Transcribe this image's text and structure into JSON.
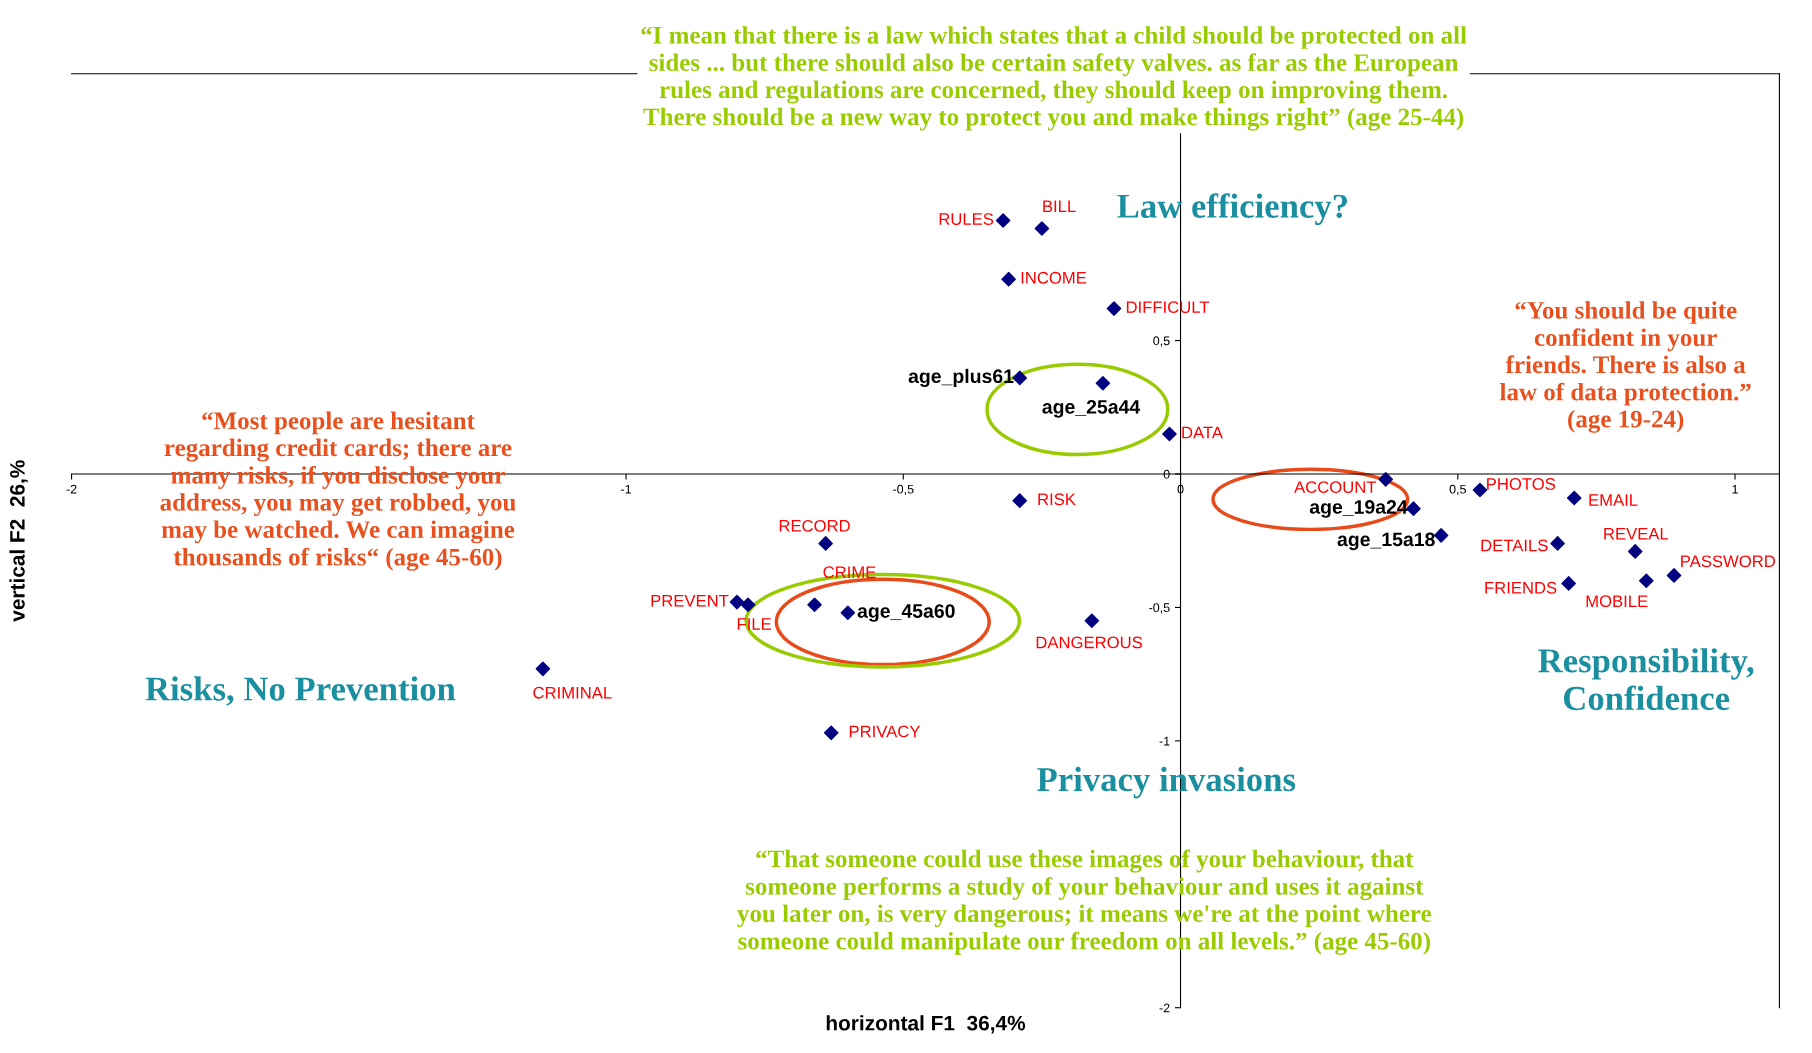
{
  "chart_data": {
    "type": "scatter",
    "xlabel": "horizontal F1  36,4%",
    "ylabel": "vertical F2  26,%",
    "xlim": [
      -2,
      1.08
    ],
    "ylim": [
      -2,
      1.5
    ],
    "xticks": [
      -2,
      -1,
      {
        "value": -0.5,
        "label": "-0,5"
      },
      0,
      {
        "value": 0.5,
        "label": "0,5"
      },
      1
    ],
    "yticks": [
      {
        "value": 0.5,
        "label": "0,5"
      },
      0,
      {
        "value": -0.5,
        "label": "-0,5"
      },
      -1,
      -2
    ],
    "marker": "diamond",
    "grid": false,
    "series": [
      {
        "color": "#000080",
        "x": [
          -0.32,
          -0.25,
          -0.31,
          -0.12,
          -0.02,
          0.37,
          0.54,
          0.71,
          0.68,
          0.82,
          0.89,
          0.7,
          0.84,
          -0.29,
          -0.64,
          -0.66,
          -0.8,
          -0.78,
          -0.16,
          -1.15,
          -0.63
        ],
        "values": [
          0.95,
          0.92,
          0.73,
          0.62,
          0.15,
          -0.02,
          -0.06,
          -0.09,
          -0.26,
          -0.29,
          -0.38,
          -0.41,
          -0.4,
          -0.1,
          -0.26,
          -0.49,
          -0.48,
          -0.49,
          -0.55,
          -0.73,
          -0.97
        ],
        "value_labels": [
          "RULES",
          "BILL",
          "INCOME",
          "DIFFICULT",
          "DATA",
          "ACCOUNT",
          "PHOTOS",
          "EMAIL",
          "DETAILS",
          "REVEAL",
          "PASSWORD",
          "FRIENDS",
          "MOBILE",
          "RISK",
          "RECORD",
          "CRIME",
          "PREVENT",
          "FILE",
          "DANGEROUS",
          "CRIMINAL",
          "PRIVACY"
        ]
      },
      {
        "color": "#000080",
        "x": [
          -0.29,
          -0.14,
          0.42,
          0.47,
          -0.6
        ],
        "values": [
          0.36,
          0.34,
          -0.13,
          -0.23,
          -0.52
        ],
        "value_labels": [
          "age_plus61",
          "age_25a44",
          "age_19a24",
          "age_15a18",
          "age_45a60"
        ]
      }
    ],
    "annotations": [
      "“I mean that there is a law which states that a child should be protected on all\nsides ... but there should also be certain safety valves. as far as the European\nrules and regulations are concerned, they should keep on improving them.\nThere should be a new way to protect you and make things right” (age 25-44)",
      "Law efficiency?",
      "“You should be quite\nconfident in your\nfriends. There is also a\nlaw of data protection.”\n(age 19-24)",
      "“Most people are hesitant\nregarding credit cards; there are\nmany risks, if you disclose your\naddress, you may get robbed, you\nmay be watched. We can imagine\nthousands of risks“ (age 45-60)",
      "Risks, No Prevention",
      "Responsibility,\nConfidence",
      "Privacy invasions",
      "“That someone could use these images of your behaviour, that\nsomeone performs a study of your behaviour and uses it against\nyou later on, is very dangerous; it means we're at the point where\nsomeone could manipulate our freedom on all levels.” (age 45-60)"
    ]
  }
}
